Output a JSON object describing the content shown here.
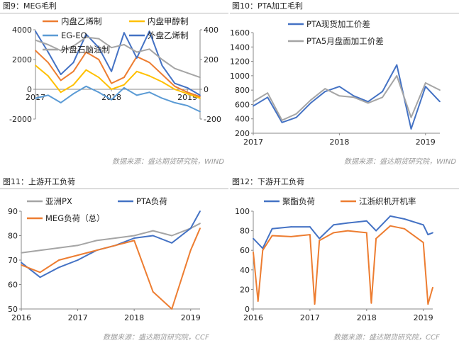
{
  "panels": [
    {
      "id": "p9",
      "title": "图9：MEG毛利",
      "source": "数据来源：盛达期货研究院，WIND"
    },
    {
      "id": "p10",
      "title": "图10：PTA加工毛利",
      "source": "数据来源：盛达期货研究院，WIND"
    },
    {
      "id": "p11",
      "title": "图11：上游开工负荷",
      "source": "数据来源：盛达期货研究院，CCF"
    },
    {
      "id": "p12",
      "title": "图12：下游开工负荷",
      "source": "数据来源：盛达期货研究院，CCF"
    }
  ],
  "chart_data": [
    {
      "id": "p9",
      "type": "line",
      "title": "",
      "xlabel": "",
      "ylabel": "",
      "x_ticks": [
        "2017",
        "2018",
        "2019"
      ],
      "xlim": [
        "2017-01",
        "2019-03"
      ],
      "ylim": [
        -2000,
        4000
      ],
      "y_ticks": [
        "-2000",
        "0",
        "2000",
        "4000"
      ],
      "y2lim": [
        -200,
        400
      ],
      "y2_ticks": [
        "-200",
        "0",
        "200",
        "400"
      ],
      "grid": false,
      "legend": "top-left",
      "series": [
        {
          "name": "内盘乙烯制",
          "axis": "left",
          "color": "#ed7d31",
          "x": [
            "2017-01",
            "2017-03",
            "2017-05",
            "2017-07",
            "2017-09",
            "2017-11",
            "2018-01",
            "2018-03",
            "2018-05",
            "2018-07",
            "2018-09",
            "2018-11",
            "2019-01",
            "2019-03"
          ],
          "y": [
            2600,
            1800,
            600,
            1200,
            2500,
            2000,
            400,
            800,
            2200,
            1800,
            1000,
            200,
            -200,
            -500
          ]
        },
        {
          "name": "内盘甲醇制",
          "axis": "left",
          "color": "#ffc000",
          "x": [
            "2017-01",
            "2017-03",
            "2017-05",
            "2017-07",
            "2017-09",
            "2017-11",
            "2018-01",
            "2018-03",
            "2018-05",
            "2018-07",
            "2018-09",
            "2018-11",
            "2019-01",
            "2019-03"
          ],
          "y": [
            1600,
            900,
            -200,
            300,
            1300,
            800,
            0,
            300,
            1200,
            900,
            500,
            0,
            -300,
            -600
          ]
        },
        {
          "name": "EG-EO",
          "axis": "right",
          "color": "#5b9bd5",
          "x": [
            "2017-01",
            "2017-03",
            "2017-05",
            "2017-07",
            "2017-09",
            "2017-11",
            "2018-01",
            "2018-03",
            "2018-05",
            "2018-07",
            "2018-09",
            "2018-11",
            "2019-01",
            "2019-03"
          ],
          "y": [
            -60,
            -40,
            -90,
            -30,
            20,
            -20,
            -70,
            10,
            -40,
            -20,
            -60,
            -90,
            -110,
            -150
          ]
        },
        {
          "name": "外盘乙烯制",
          "axis": "left",
          "color": "#4472c4",
          "x": [
            "2017-01",
            "2017-03",
            "2017-05",
            "2017-07",
            "2017-09",
            "2017-11",
            "2018-01",
            "2018-03",
            "2018-05",
            "2018-07",
            "2018-09",
            "2018-11",
            "2019-01",
            "2019-03"
          ],
          "y": [
            3900,
            2500,
            1000,
            1800,
            3700,
            2800,
            1200,
            3800,
            2100,
            3900,
            1600,
            400,
            100,
            -400
          ]
        },
        {
          "name": "外盘石脑油制",
          "axis": "left",
          "color": "#a5a5a5",
          "x": [
            "2017-01",
            "2017-03",
            "2017-05",
            "2017-07",
            "2017-09",
            "2017-11",
            "2018-01",
            "2018-03",
            "2018-05",
            "2018-07",
            "2018-09",
            "2018-11",
            "2019-01",
            "2019-03"
          ],
          "y": [
            3300,
            3000,
            2600,
            2900,
            3500,
            3400,
            2800,
            3000,
            2500,
            2700,
            2000,
            1400,
            1100,
            800
          ]
        }
      ]
    },
    {
      "id": "p10",
      "type": "line",
      "title": "",
      "xlabel": "",
      "ylabel": "",
      "x_ticks": [
        "2017",
        "2018",
        "2019"
      ],
      "xlim": [
        "2017-01",
        "2019-03"
      ],
      "ylim": [
        200,
        1600
      ],
      "y_ticks": [
        "200",
        "400",
        "600",
        "800",
        "1000",
        "1200",
        "1400",
        "1600"
      ],
      "grid": false,
      "legend": "top-left",
      "series": [
        {
          "name": "PTA现货加工价差",
          "color": "#4472c4",
          "x": [
            "2017-01",
            "2017-03",
            "2017-05",
            "2017-07",
            "2017-09",
            "2017-11",
            "2018-01",
            "2018-03",
            "2018-05",
            "2018-07",
            "2018-09",
            "2018-11",
            "2019-01",
            "2019-03"
          ],
          "y": [
            580,
            700,
            350,
            420,
            620,
            780,
            850,
            720,
            640,
            780,
            1150,
            260,
            850,
            640
          ]
        },
        {
          "name": "PTA5月盘面加工价差",
          "color": "#a5a5a5",
          "x": [
            "2017-01",
            "2017-03",
            "2017-05",
            "2017-07",
            "2017-09",
            "2017-11",
            "2018-01",
            "2018-03",
            "2018-05",
            "2018-07",
            "2018-09",
            "2018-11",
            "2019-01",
            "2019-03"
          ],
          "y": [
            640,
            760,
            380,
            470,
            660,
            820,
            720,
            700,
            620,
            700,
            1000,
            420,
            900,
            800
          ]
        }
      ]
    },
    {
      "id": "p11",
      "type": "line",
      "title": "",
      "xlabel": "",
      "ylabel": "",
      "x_ticks": [
        "2016",
        "2017",
        "2018",
        "2019"
      ],
      "xlim": [
        "2016-01",
        "2019-03"
      ],
      "ylim": [
        50,
        90
      ],
      "y_ticks": [
        "50",
        "60",
        "70",
        "80",
        "90"
      ],
      "grid": false,
      "legend": "top-left",
      "series": [
        {
          "name": "亚洲PX",
          "color": "#a5a5a5",
          "x": [
            "2016-01",
            "2016-05",
            "2016-09",
            "2017-01",
            "2017-05",
            "2017-09",
            "2018-01",
            "2018-05",
            "2018-09",
            "2019-01",
            "2019-03"
          ],
          "y": [
            73,
            74,
            75,
            76,
            78,
            79,
            80,
            82,
            80,
            83,
            85
          ]
        },
        {
          "name": "PTA负荷",
          "color": "#4472c4",
          "x": [
            "2016-01",
            "2016-05",
            "2016-09",
            "2017-01",
            "2017-05",
            "2017-09",
            "2018-01",
            "2018-05",
            "2018-09",
            "2019-01",
            "2019-03"
          ],
          "y": [
            69,
            63,
            67,
            70,
            74,
            76,
            79,
            80,
            77,
            83,
            90
          ]
        },
        {
          "name": "MEG负荷（总）",
          "color": "#ed7d31",
          "x": [
            "2016-01",
            "2016-05",
            "2016-09",
            "2017-01",
            "2017-05",
            "2017-09",
            "2018-01",
            "2018-05",
            "2018-09",
            "2019-01",
            "2019-03"
          ],
          "y": [
            68,
            65,
            70,
            72,
            74,
            76,
            78,
            57,
            50,
            74,
            83
          ]
        }
      ]
    },
    {
      "id": "p12",
      "type": "line",
      "title": "",
      "xlabel": "",
      "ylabel": "",
      "x_ticks": [
        "2016",
        "2017",
        "2018",
        "2019"
      ],
      "xlim": [
        "2016-01",
        "2019-03"
      ],
      "ylim": [
        0,
        100
      ],
      "y_ticks": [
        "0",
        "20",
        "40",
        "60",
        "80",
        "100"
      ],
      "grid": false,
      "legend": "top-left",
      "series": [
        {
          "name": "聚酯负荷",
          "color": "#4472c4",
          "x": [
            "2016-01",
            "2016-03",
            "2016-05",
            "2016-09",
            "2017-01",
            "2017-03",
            "2017-06",
            "2017-09",
            "2018-01",
            "2018-03",
            "2018-06",
            "2018-09",
            "2019-01",
            "2019-02",
            "2019-03"
          ],
          "y": [
            72,
            62,
            82,
            84,
            84,
            72,
            86,
            88,
            90,
            80,
            95,
            92,
            86,
            76,
            78
          ]
        },
        {
          "name": "江浙织机开机率",
          "color": "#ed7d31",
          "x": [
            "2016-01",
            "2016-02",
            "2016-03",
            "2016-05",
            "2016-09",
            "2017-01",
            "2017-02",
            "2017-03",
            "2017-06",
            "2017-09",
            "2018-01",
            "2018-02",
            "2018-03",
            "2018-06",
            "2018-09",
            "2019-01",
            "2019-02",
            "2019-03"
          ],
          "y": [
            58,
            8,
            60,
            75,
            74,
            76,
            5,
            70,
            78,
            80,
            78,
            6,
            72,
            85,
            82,
            68,
            5,
            22
          ]
        }
      ]
    }
  ]
}
